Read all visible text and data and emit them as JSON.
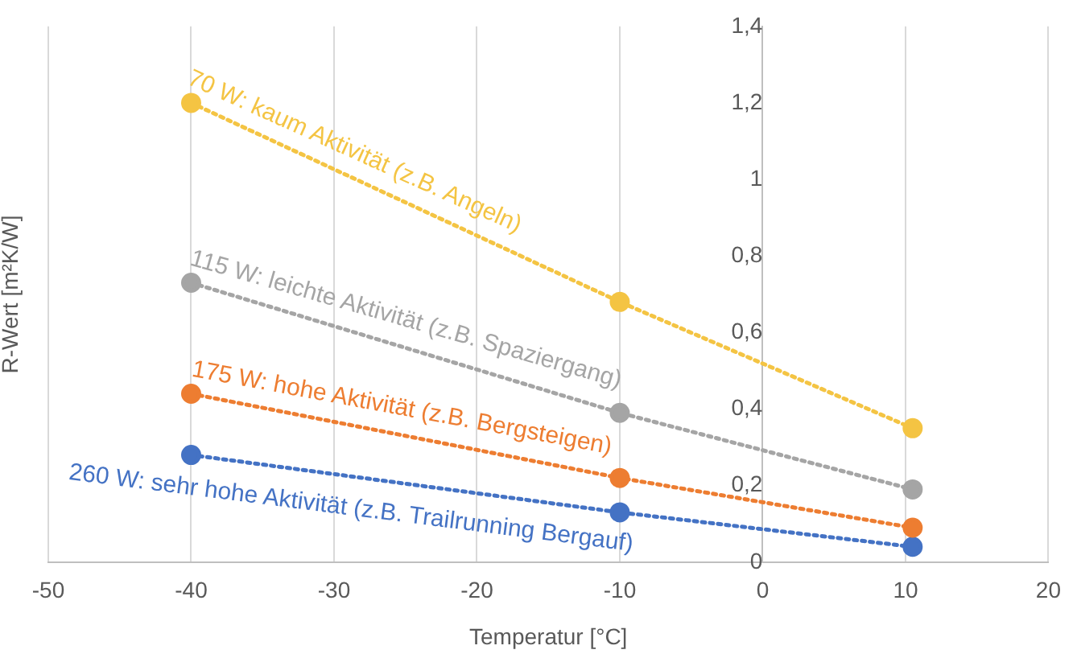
{
  "chart_data": {
    "type": "line",
    "xlabel": "Temperatur [°C]",
    "ylabel": "R-Wert [m²K/W]",
    "x": [
      -40,
      -10,
      10.5
    ],
    "series": [
      {
        "name": "70 W: kaum Aktivität (z.B. Angeln)",
        "color": "#f4c443",
        "values": [
          1.2,
          0.68,
          0.35
        ]
      },
      {
        "name": "115 W: leichte Aktivität (z.B. Spaziergang)",
        "color": "#a5a5a5",
        "values": [
          0.73,
          0.39,
          0.19
        ]
      },
      {
        "name": "175 W: hohe Aktivität (z.B. Bergsteigen)",
        "color": "#ed7d31",
        "values": [
          0.44,
          0.22,
          0.09
        ]
      },
      {
        "name": "260 W: sehr hohe Aktivität (z.B. Trailrunning Bergauf)",
        "color": "#4472c4",
        "values": [
          0.28,
          0.13,
          0.04
        ]
      }
    ],
    "xlim": [
      -50,
      20
    ],
    "xticks": [
      -50,
      -40,
      -30,
      -20,
      -10,
      0,
      10,
      20
    ],
    "ylim": [
      0,
      1.4
    ],
    "yticks": [
      0,
      {
        "value": 0.2,
        "label": "0,2"
      },
      {
        "value": 0.4,
        "label": "0,4"
      },
      {
        "value": 0.6,
        "label": "0,6"
      },
      {
        "value": 0.8,
        "label": "0,8"
      },
      1,
      {
        "value": 1.2,
        "label": "1,2"
      },
      {
        "value": 1.4,
        "label": "1,4"
      }
    ],
    "grid": "x",
    "legend": false,
    "marker": "circle",
    "line_style": "dotted"
  }
}
